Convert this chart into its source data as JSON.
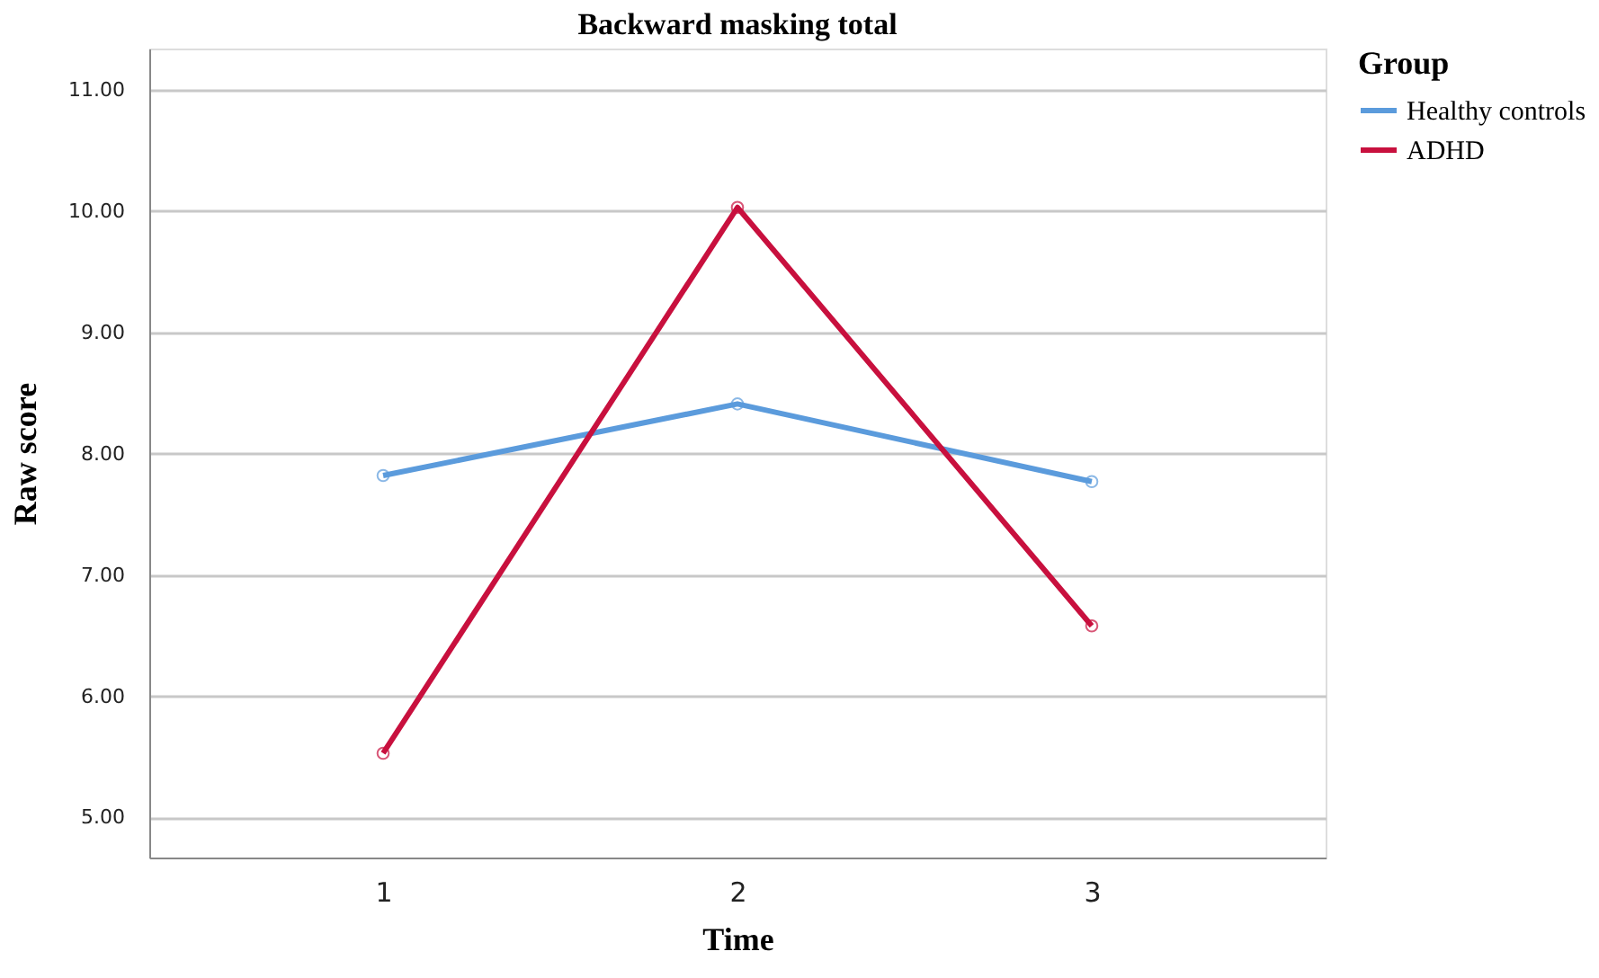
{
  "chart_data": {
    "type": "line",
    "title": "Backward masking total",
    "xlabel": "Time",
    "ylabel": "Raw score",
    "legend_title": "Group",
    "categories": [
      "1",
      "2",
      "3"
    ],
    "series": [
      {
        "name": "Healthy controls",
        "color": "#5b9bdc",
        "values": [
          7.82,
          8.41,
          7.77
        ]
      },
      {
        "name": "ADHD",
        "color": "#c8103e",
        "values": [
          5.53,
          10.03,
          6.58
        ]
      }
    ],
    "ylim": [
      4.67,
      11.34
    ],
    "yticks": [
      {
        "value": 5,
        "label": "5.00"
      },
      {
        "value": 6,
        "label": "6.00"
      },
      {
        "value": 7,
        "label": "7.00"
      },
      {
        "value": 8,
        "label": "8.00"
      },
      {
        "value": 9,
        "label": "9.00"
      },
      {
        "value": 10,
        "label": "10.00"
      },
      {
        "value": 11,
        "label": "11.00"
      }
    ],
    "grid": "y",
    "legend": "top right",
    "marker": "circle",
    "line_style": "solid"
  }
}
